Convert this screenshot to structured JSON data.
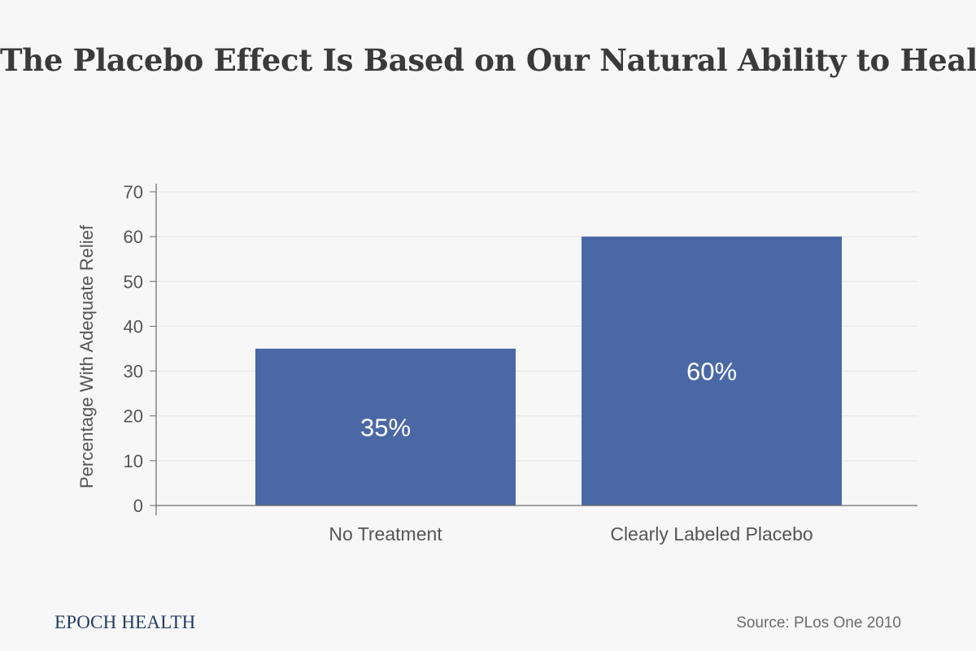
{
  "title": "The Placebo Effect Is Based on Our Natural Ability to Heal",
  "brand": "EPOCH HEALTH",
  "source": "Source: PLos One 2010",
  "colors": {
    "bar": "#4a68a5",
    "background": "#f7f7f7",
    "grid": "#e6e6e6",
    "axis": "#6b6b6b",
    "text": "#555555",
    "brand": "#1f3a5f"
  },
  "chart_data": {
    "type": "bar",
    "title": "The Placebo Effect Is Based on Our Natural Ability to Heal",
    "categories": [
      "No Treatment",
      "Clearly Labeled Placebo"
    ],
    "values": [
      35,
      60
    ],
    "data_labels": [
      "35%",
      "60%"
    ],
    "xlabel": "",
    "ylabel": "Percentage With Adequate Relief",
    "ylim": [
      0,
      70
    ],
    "yticks": [
      0,
      10,
      20,
      30,
      40,
      50,
      60,
      70
    ],
    "grid": true,
    "legend": "none"
  }
}
